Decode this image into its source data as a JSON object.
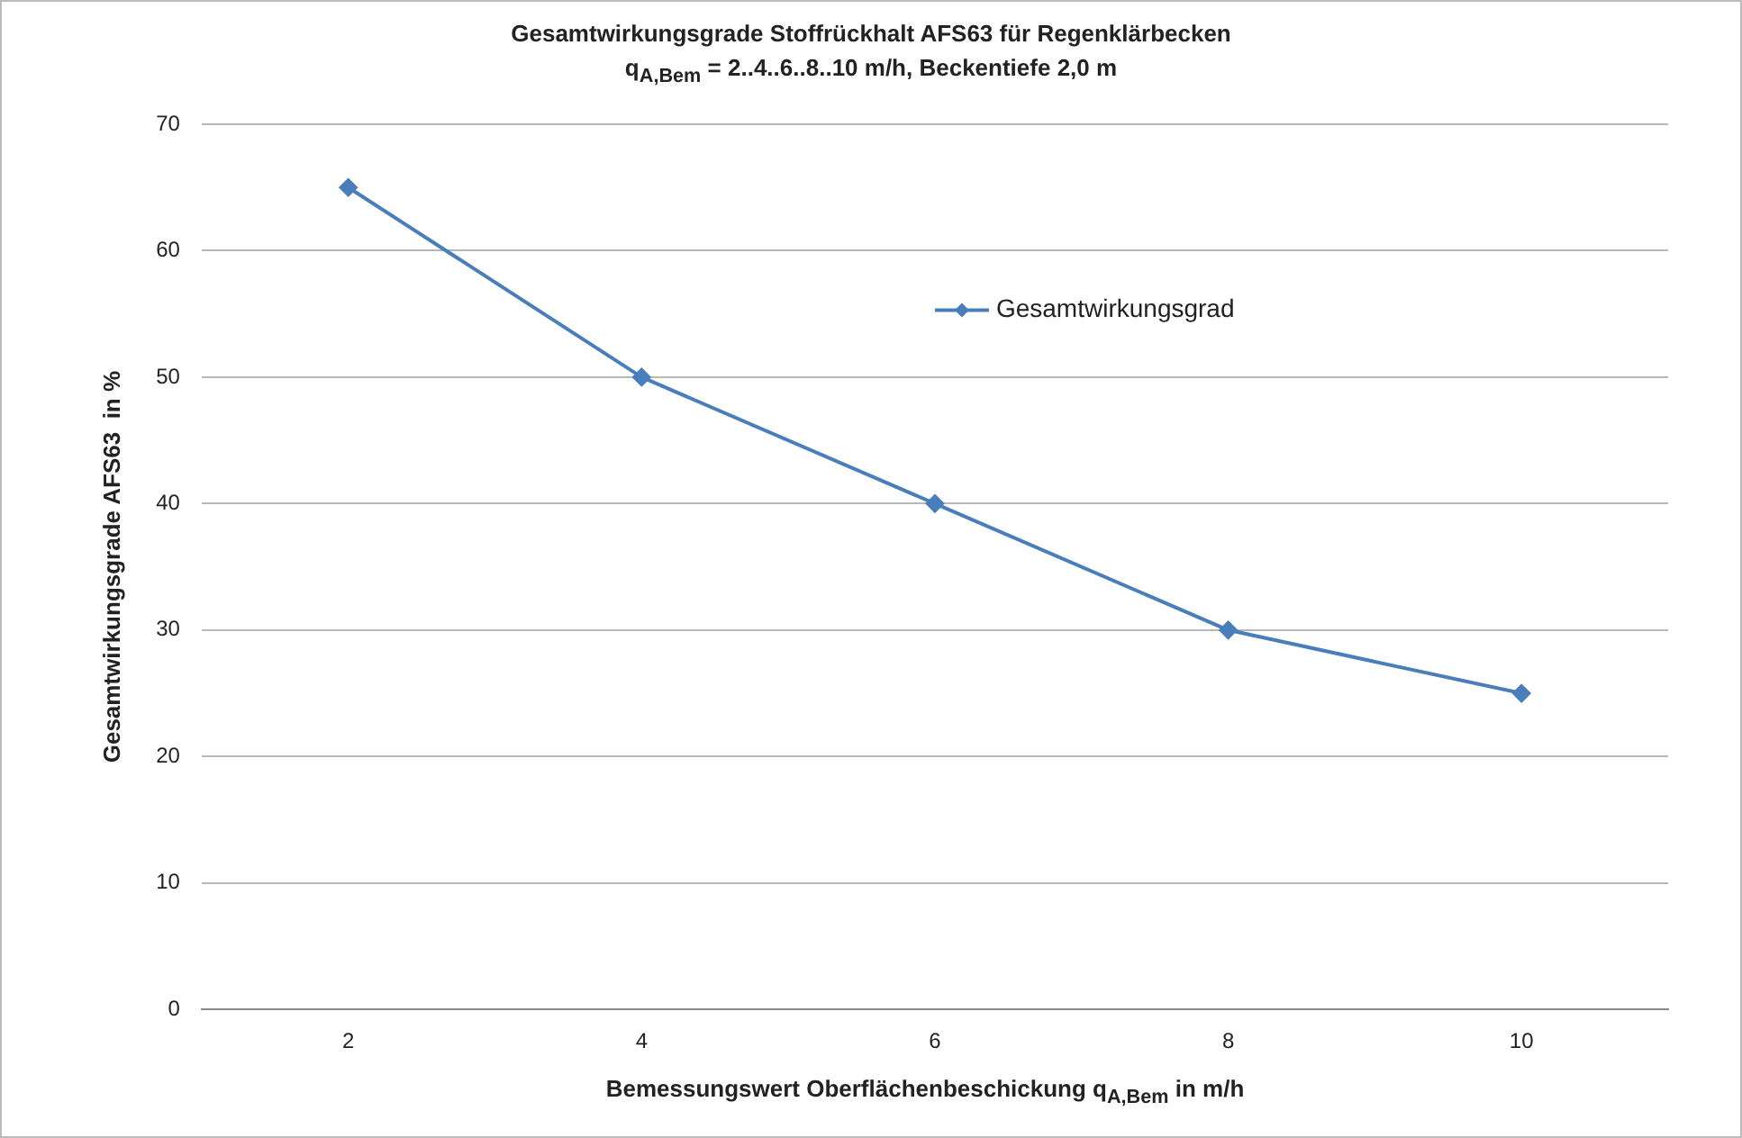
{
  "chart_data": {
    "type": "line",
    "title": "Gesamtwirkungsgrade Stoffrückhalt AFS63 für Regenklärbecken",
    "subtitle": "q$_{A,Bem}$ = 2..4..6..8..10 m/h, Beckentiefe 2,0 m",
    "xlabel": "Bemessungswert Oberflächenbeschickung q$_{A,Bem}$ in m/h",
    "ylabel": "Gesamtwirkungsgrade AFS63  in %",
    "categories": [
      "2",
      "4",
      "6",
      "8",
      "10"
    ],
    "series": [
      {
        "name": "Gesamtwirkungsgrad",
        "color": "#4a7ebb",
        "values": [
          65,
          50,
          40,
          30,
          25
        ]
      }
    ],
    "ylim": [
      0,
      70
    ],
    "yticks": [
      0,
      10,
      20,
      30,
      40,
      50,
      60,
      70
    ],
    "grid": "y",
    "legend": "top right",
    "marker": "diamond",
    "line_style": "solid"
  }
}
